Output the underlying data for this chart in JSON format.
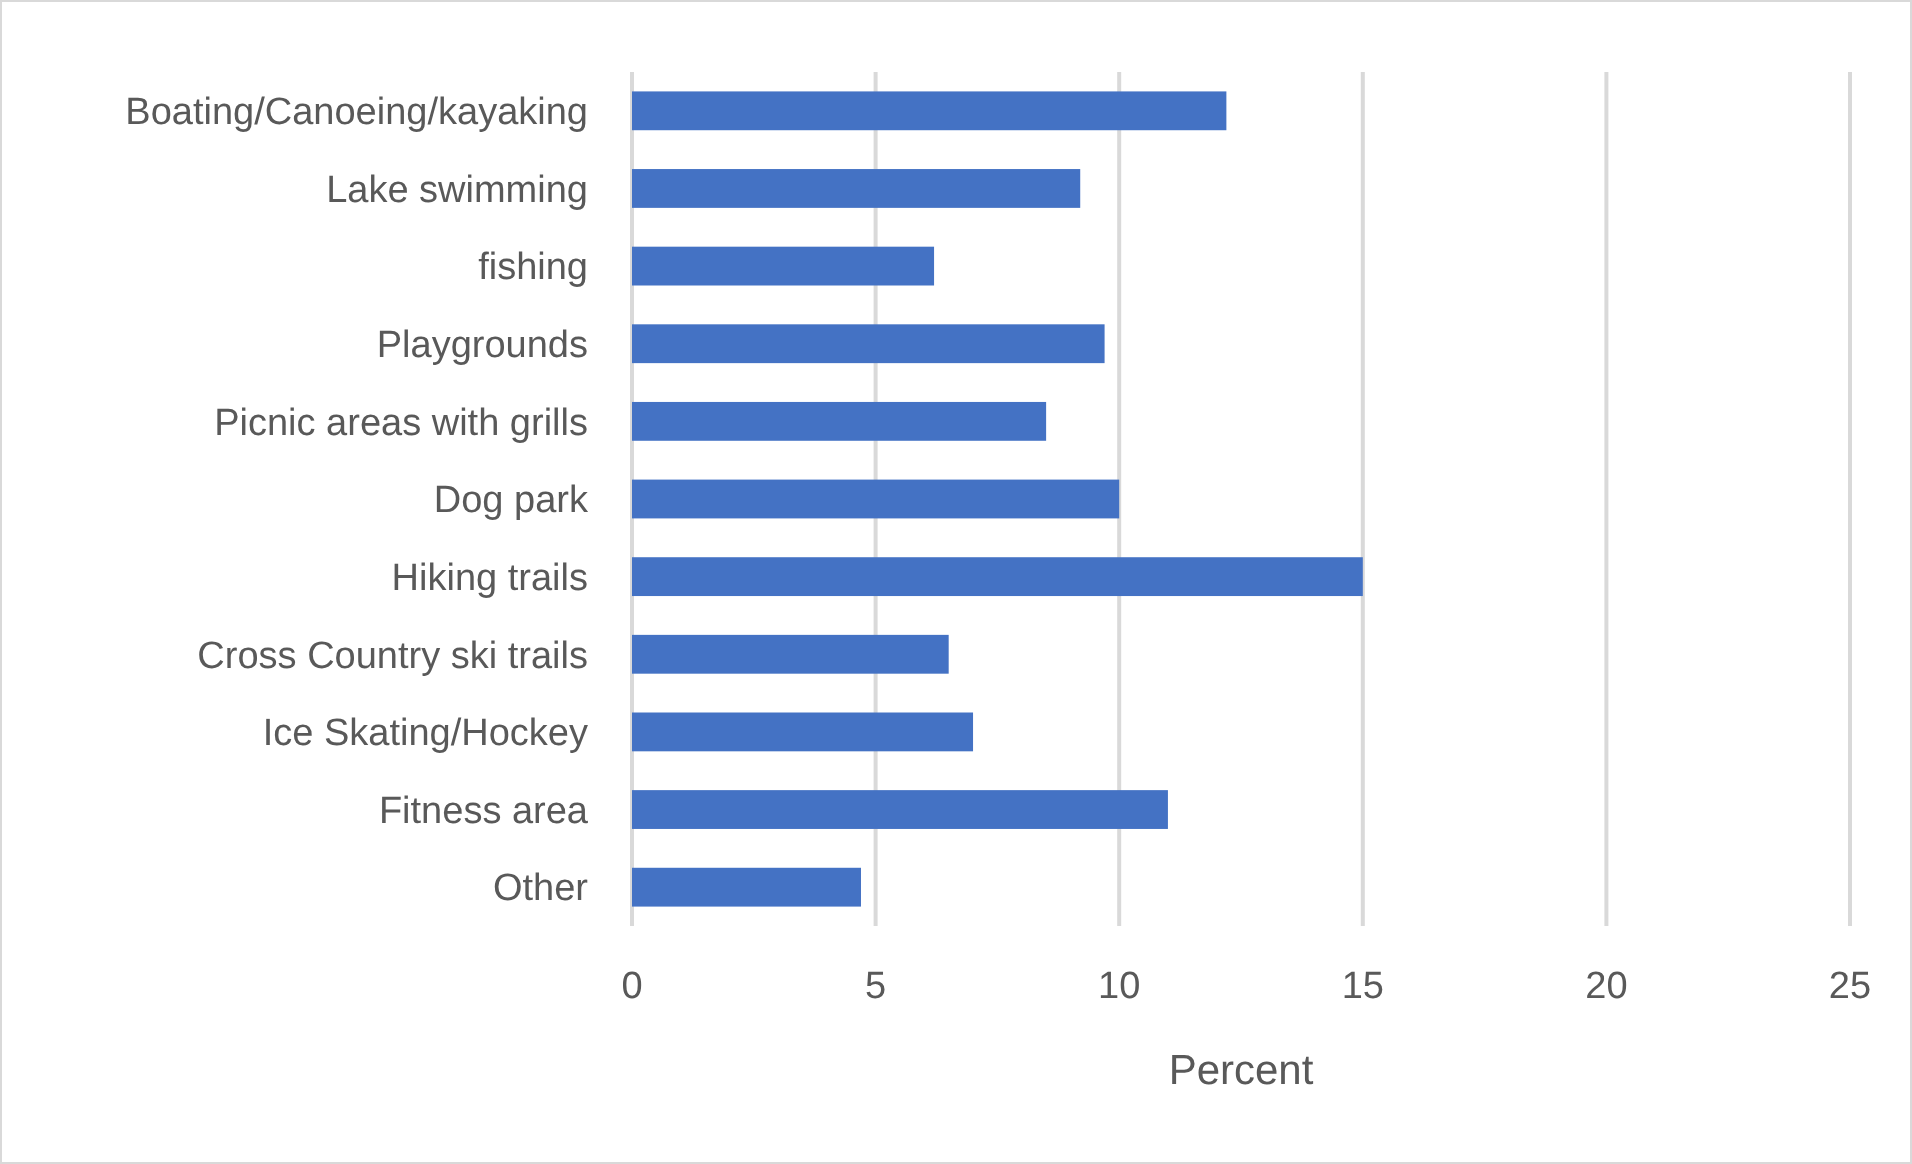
{
  "chart_data": {
    "type": "bar",
    "orientation": "horizontal",
    "xlabel": "Percent",
    "categories": [
      "Boating/Canoeing/kayaking",
      "Lake swimming",
      "fishing",
      "Playgrounds",
      "Picnic areas with grills",
      "Dog park",
      "Hiking trails",
      "Cross Country ski trails",
      "Ice Skating/Hockey",
      "Fitness area",
      "Other"
    ],
    "values": [
      12.2,
      9.2,
      6.2,
      9.7,
      8.5,
      10.0,
      15.0,
      6.5,
      7.0,
      11.0,
      4.7
    ],
    "color": "#4472c4",
    "xlim": [
      0,
      25
    ],
    "xticks": [
      0,
      5,
      10,
      15,
      20,
      25
    ],
    "grid": "x"
  }
}
